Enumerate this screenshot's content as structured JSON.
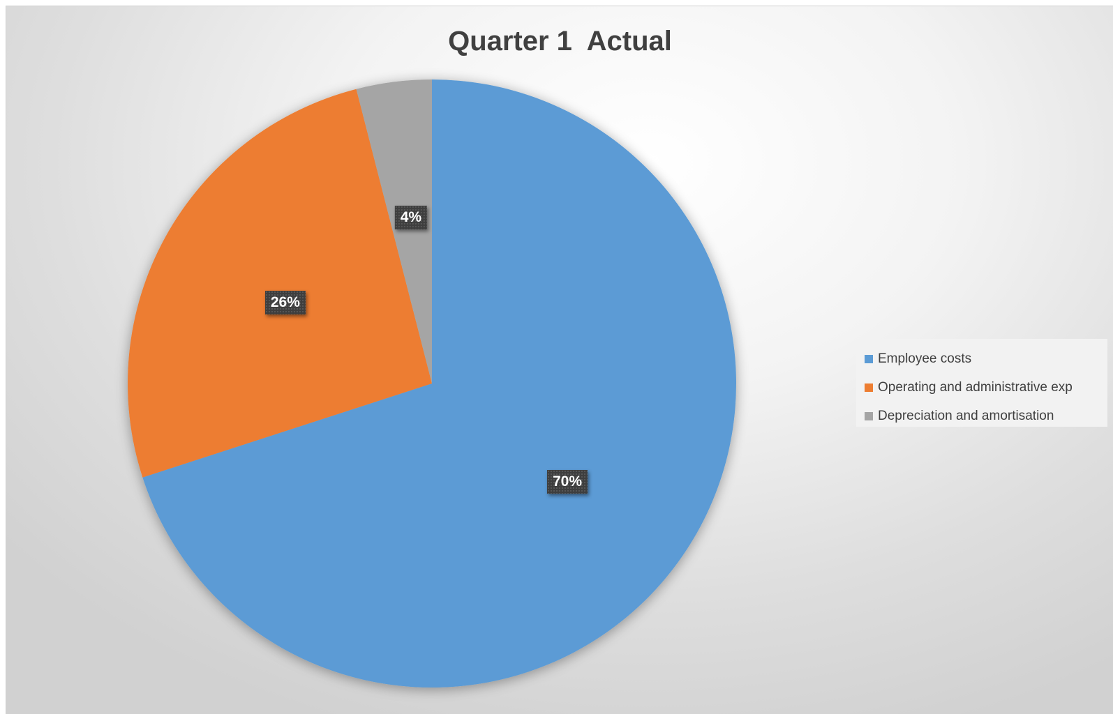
{
  "chart_data": {
    "type": "pie",
    "title": "Quarter 1  Actual",
    "categories": [
      "Employee costs",
      "Operating and administrative exp",
      "Depreciation and amortisation"
    ],
    "values": [
      70,
      26,
      4
    ],
    "value_labels": [
      "70%",
      "26%",
      "4%"
    ],
    "colors": [
      "#5B9BD5",
      "#ED7D31",
      "#A5A5A5"
    ],
    "legend_position": "right"
  }
}
